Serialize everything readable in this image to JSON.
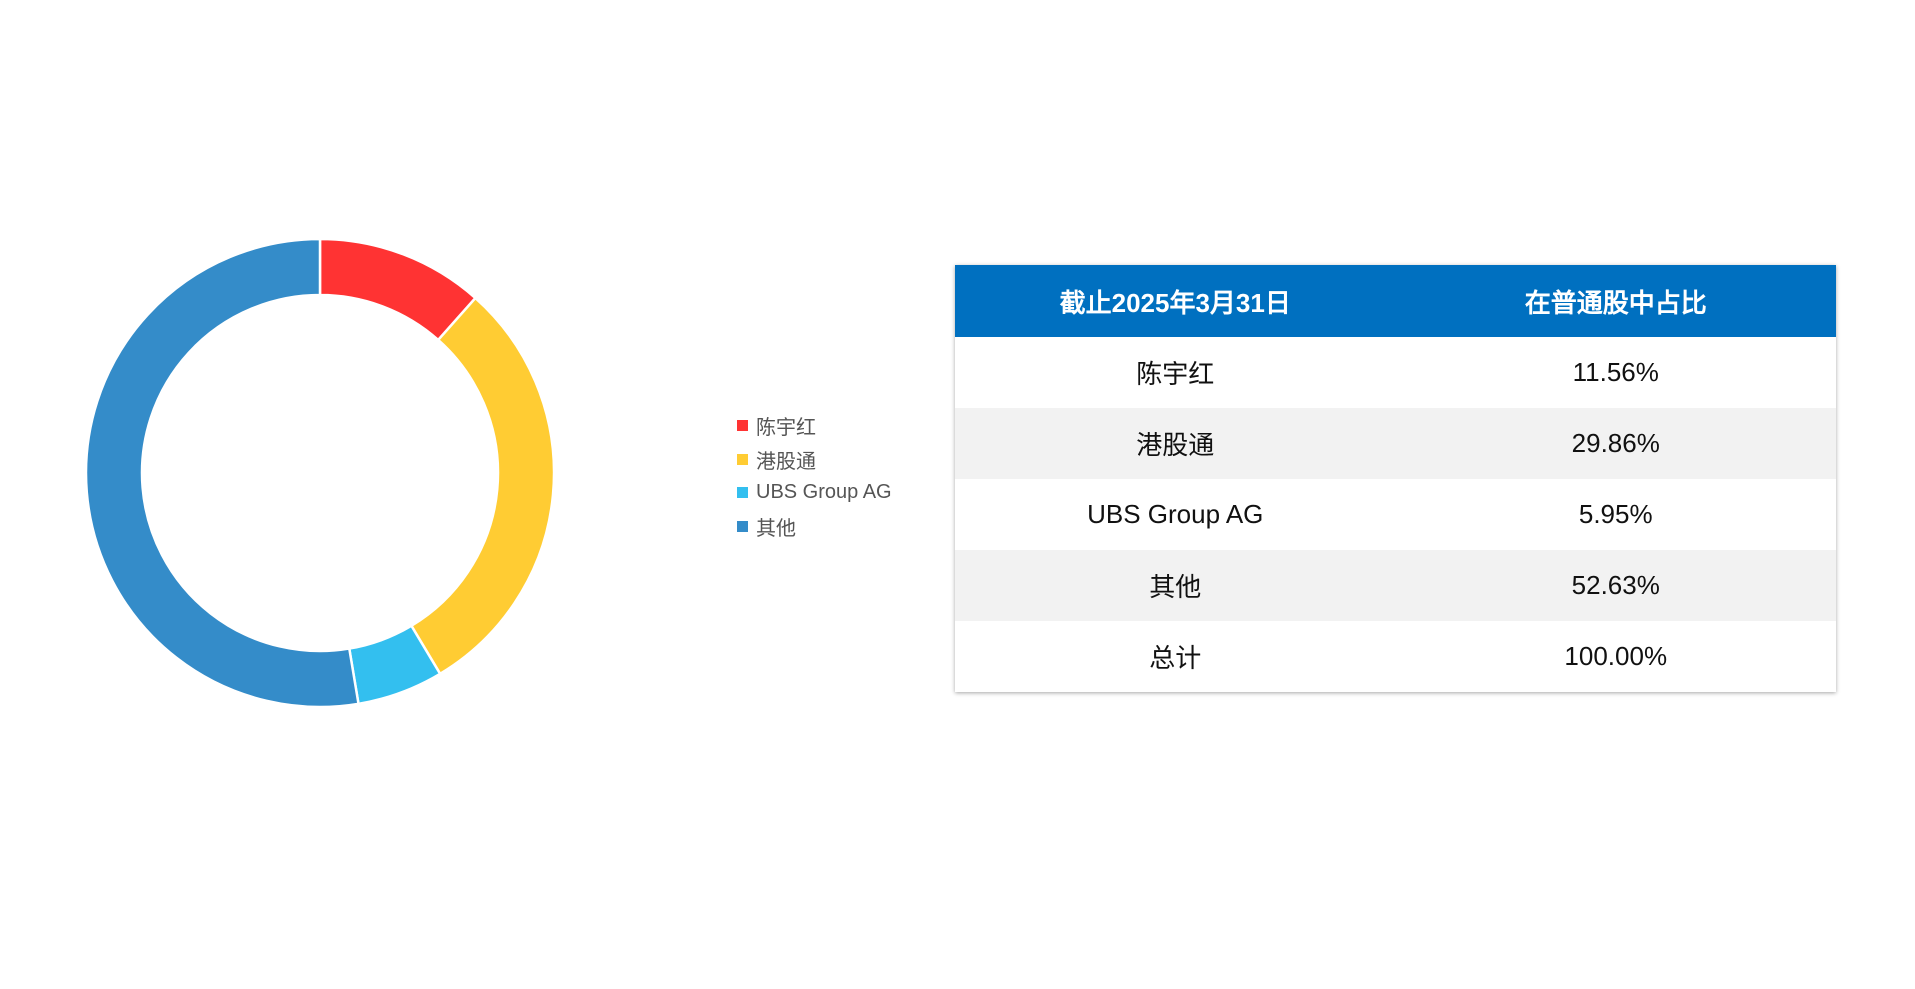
{
  "chart_data": {
    "type": "pie",
    "variant": "donut",
    "start": "top",
    "direction": "clockwise",
    "legend_position": "right",
    "categories": [
      "陈宇红",
      "港股通",
      "UBS Group AG",
      "其他"
    ],
    "values": [
      11.56,
      29.86,
      5.95,
      52.63
    ],
    "colors": [
      "#FF3333",
      "#FFCC33",
      "#33BFEF",
      "#348CC9"
    ]
  },
  "table": {
    "headers": [
      "截止2025年3月31日",
      "在普通股中占比"
    ],
    "header_color": "#0070C0",
    "rows": [
      [
        "陈宇红",
        "11.56%"
      ],
      [
        "港股通",
        "29.86%"
      ],
      [
        "UBS Group AG",
        "5.95%"
      ],
      [
        "其他",
        "52.63%"
      ],
      [
        "总计",
        "100.00%"
      ]
    ]
  }
}
